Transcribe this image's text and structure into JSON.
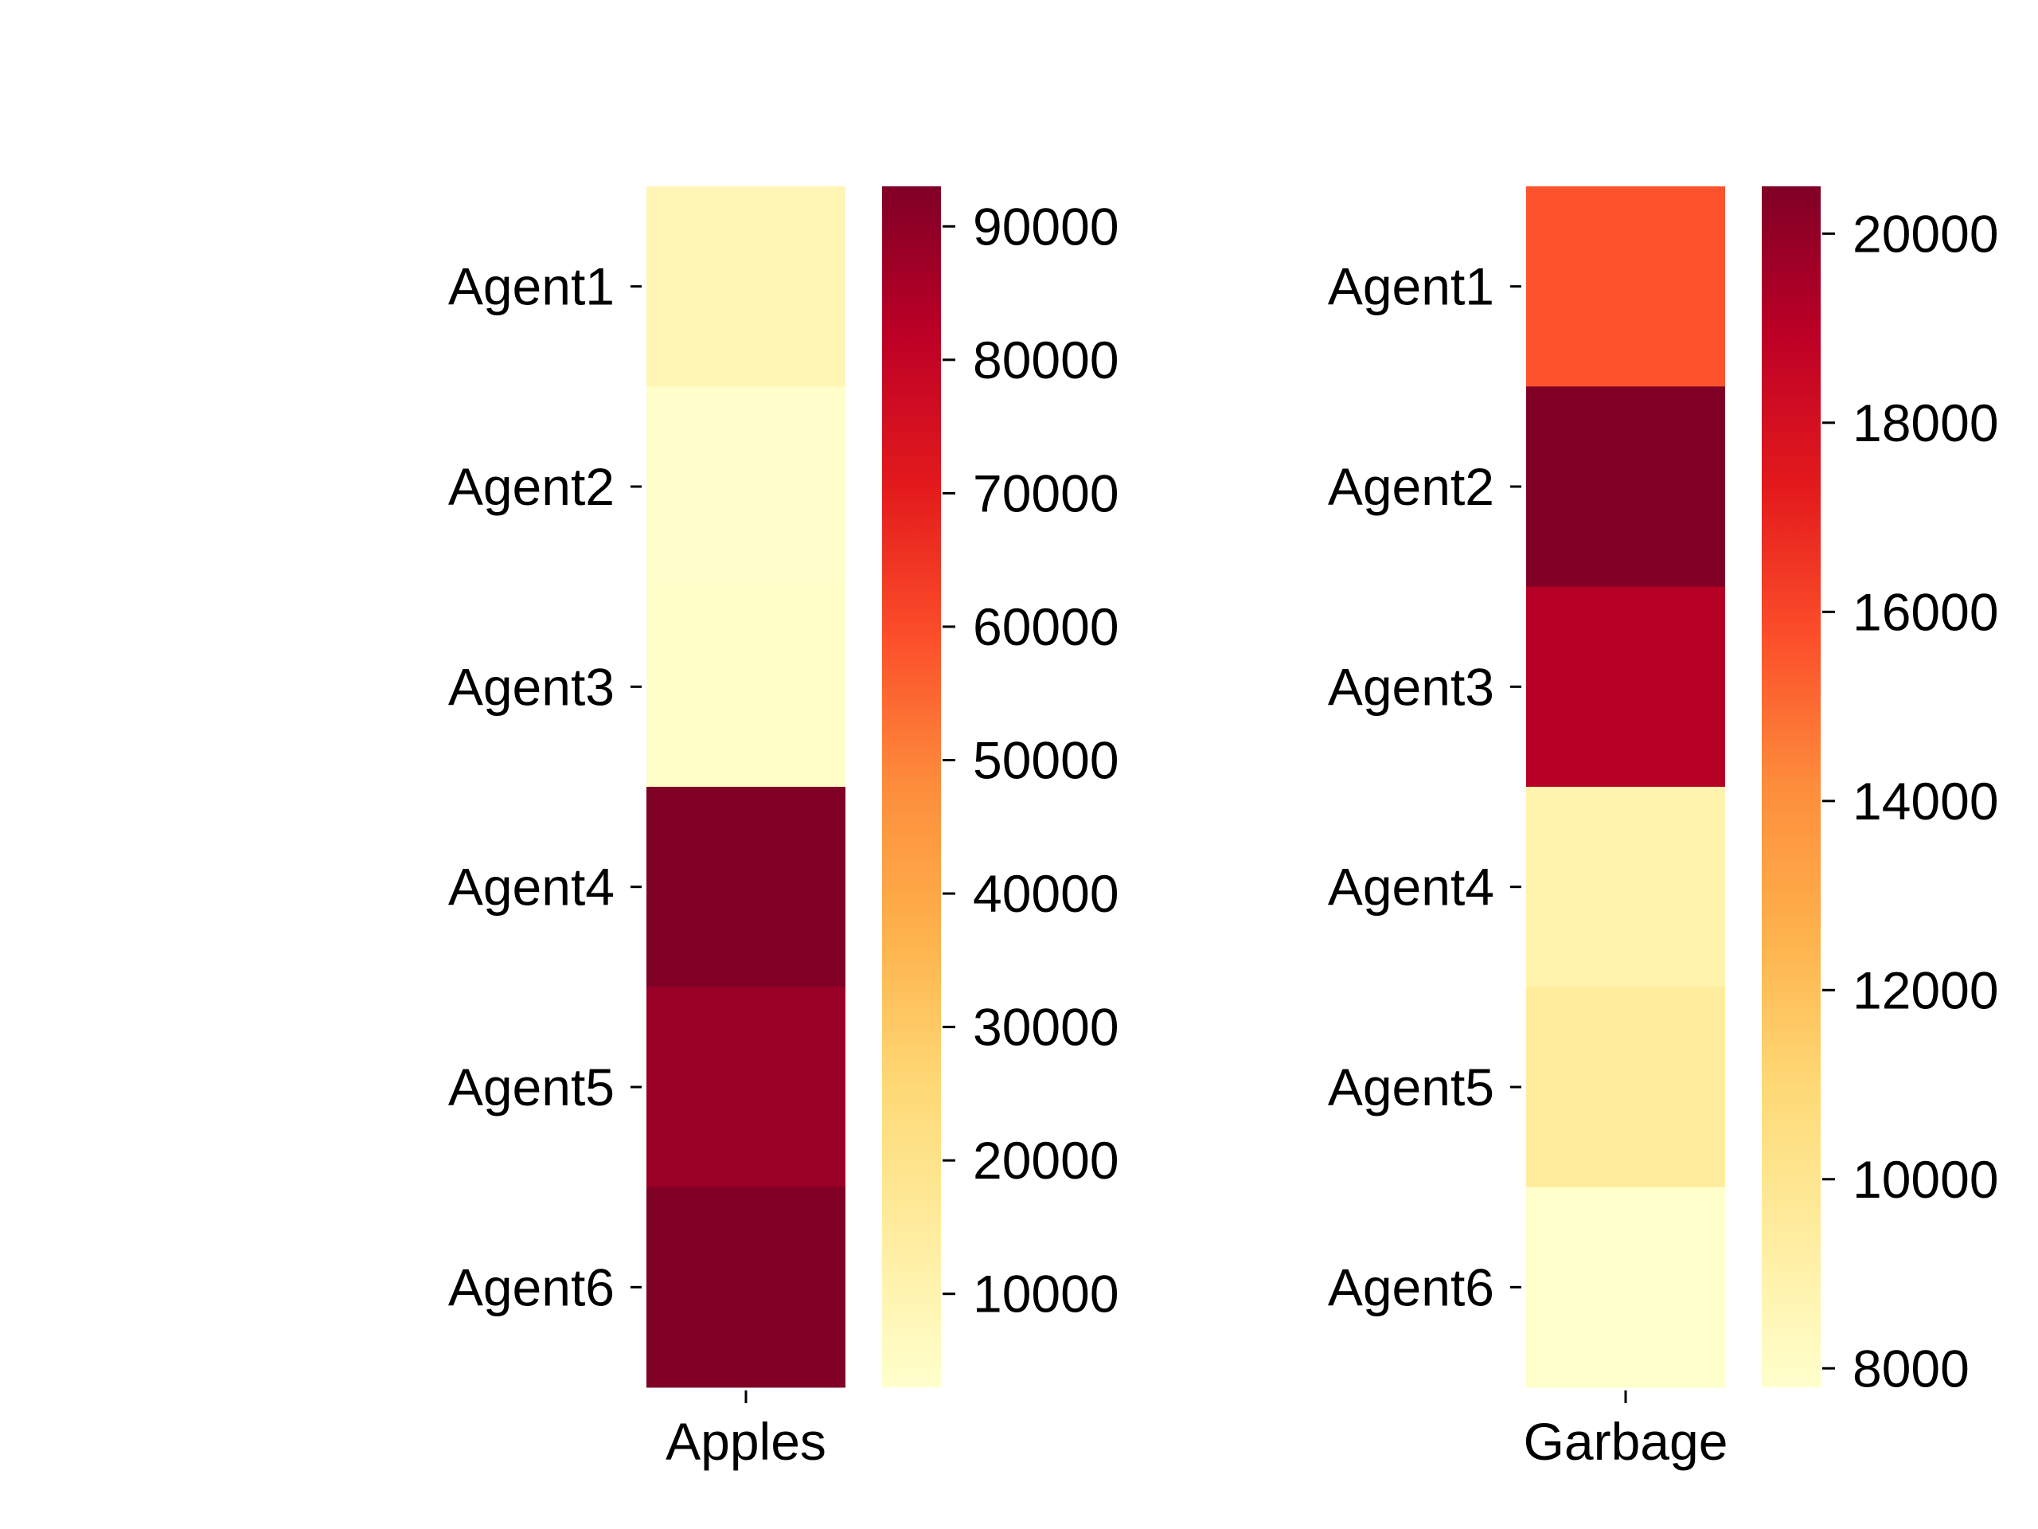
{
  "chart_data": [
    {
      "type": "heatmap",
      "categories": [
        "Agent1",
        "Agent2",
        "Agent3",
        "Agent4",
        "Agent5",
        "Agent6"
      ],
      "series": [
        {
          "name": "Apples",
          "values": [
            9000,
            3500,
            3800,
            93000,
            88000,
            93500
          ]
        }
      ],
      "xlabel": "Apples",
      "colormap": "YlOrRd",
      "colorbar": {
        "vmin": 3000,
        "vmax": 93000,
        "ticks": [
          10000,
          20000,
          30000,
          40000,
          50000,
          60000,
          70000,
          80000,
          90000
        ]
      }
    },
    {
      "type": "heatmap",
      "categories": [
        "Agent1",
        "Agent2",
        "Agent3",
        "Agent4",
        "Agent5",
        "Agent6"
      ],
      "series": [
        {
          "name": "Garbage",
          "values": [
            15600,
            20500,
            19100,
            8900,
            9500,
            7800
          ]
        }
      ],
      "xlabel": "Garbage",
      "colormap": "YlOrRd",
      "colorbar": {
        "vmin": 7800,
        "vmax": 20500,
        "ticks": [
          8000,
          10000,
          12000,
          14000,
          16000,
          18000,
          20000
        ]
      }
    }
  ],
  "colors": {
    "colormap_stops": [
      "#ffffcc",
      "#ffeda0",
      "#fed976",
      "#feb24c",
      "#fd8d3c",
      "#fc4e2a",
      "#e31a1c",
      "#bd0026",
      "#800026"
    ],
    "text": "#000000",
    "background": "#ffffff"
  }
}
